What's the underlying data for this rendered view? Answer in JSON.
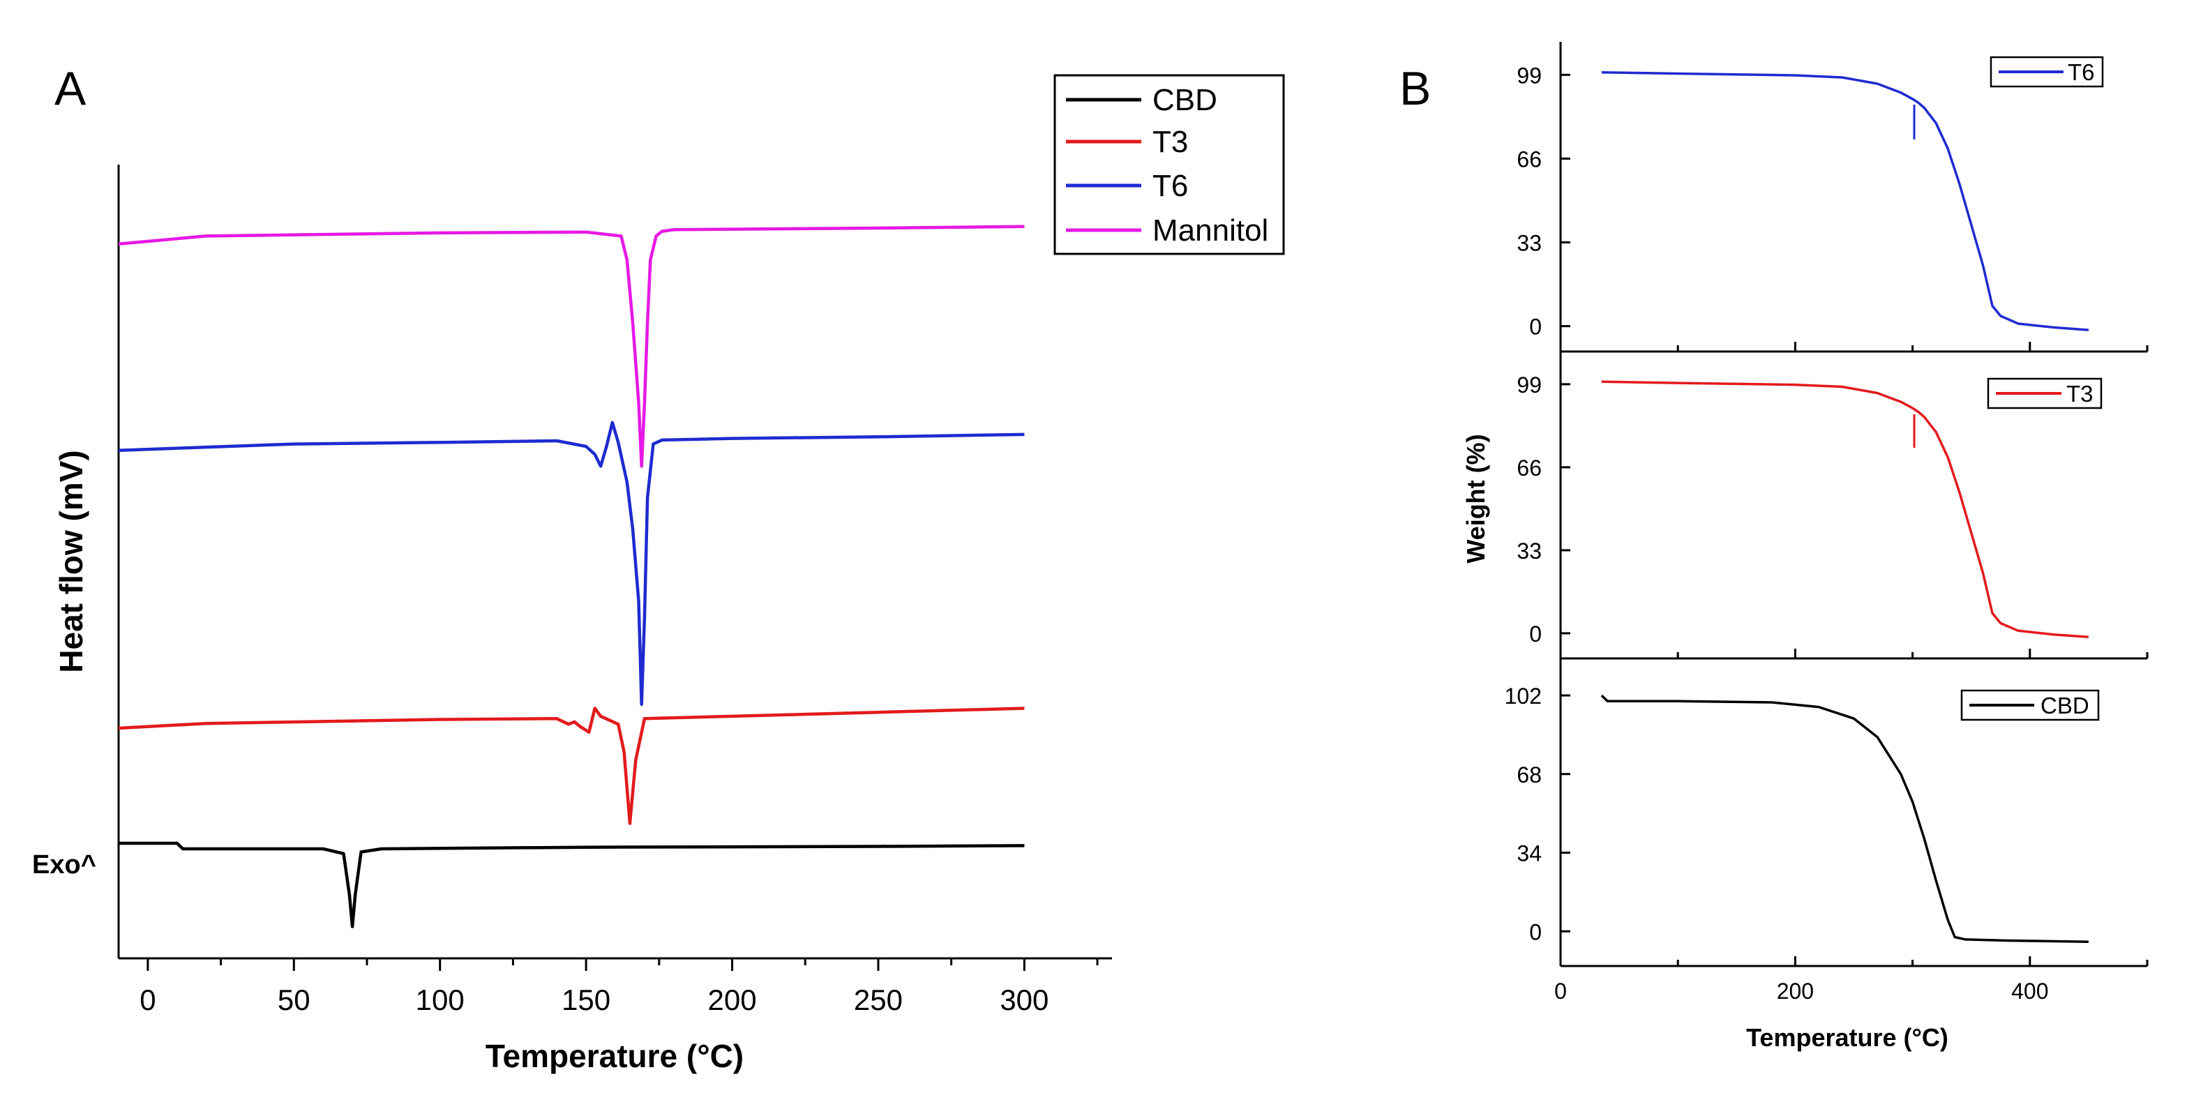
{
  "figure": {
    "panel_a_label": "A",
    "panel_b_label": "B"
  },
  "chart_data": [
    {
      "type": "line",
      "panel": "A",
      "title": "",
      "xlabel": "Temperature (°C)",
      "ylabel": "Heat flow (mV)",
      "y_annotation": "Exo^",
      "xlim": [
        -10,
        330
      ],
      "ylim": [
        0,
        100
      ],
      "xticks": [
        0,
        50,
        100,
        150,
        200,
        250,
        300
      ],
      "y_axis_numeric": false,
      "legend": "top-right",
      "series": [
        {
          "name": "CBD",
          "color": "#000000",
          "x": [
            -10,
            10,
            12,
            20,
            60,
            67,
            69,
            70,
            71,
            73,
            80,
            150,
            250,
            300
          ],
          "y": [
            14.5,
            14.5,
            13.8,
            13.8,
            13.8,
            13.2,
            8,
            4,
            8,
            13.4,
            13.8,
            14,
            14.1,
            14.2
          ]
        },
        {
          "name": "T3",
          "color": "#e31a1c",
          "x": [
            -10,
            20,
            100,
            140,
            144,
            146,
            148,
            151,
            153,
            155,
            158,
            161,
            163,
            165,
            167,
            170,
            200,
            250,
            300
          ],
          "y": [
            29,
            29.6,
            30.1,
            30.2,
            29.5,
            29.8,
            29.2,
            28.5,
            31.5,
            30.5,
            30,
            29.5,
            26,
            17,
            25,
            30.2,
            30.5,
            31,
            31.5
          ]
        },
        {
          "name": "T6",
          "color": "#1f2bd0",
          "x": [
            -10,
            50,
            100,
            140,
            150,
            153,
            155,
            157,
            159,
            161,
            164,
            166,
            168,
            169,
            170,
            171,
            173,
            176,
            200,
            250,
            300
          ],
          "y": [
            64,
            64.8,
            65,
            65.2,
            64.5,
            63.5,
            62,
            64.5,
            67.5,
            65,
            60,
            54,
            45,
            32,
            43,
            58,
            64.8,
            65.3,
            65.5,
            65.7,
            66
          ]
        },
        {
          "name": "Mannitol",
          "color": "#e619e6",
          "x": [
            -10,
            20,
            100,
            150,
            162,
            164,
            166,
            168,
            169,
            170,
            171,
            172,
            174,
            176,
            180,
            250,
            300
          ],
          "y": [
            90,
            91,
            91.4,
            91.5,
            91,
            88,
            80,
            70,
            62,
            70,
            80,
            88,
            91,
            91.6,
            91.8,
            92,
            92.2
          ]
        }
      ]
    },
    {
      "type": "line",
      "panel": "B-top",
      "title": "",
      "xlabel": "",
      "ylabel": "",
      "xlim": [
        0,
        500
      ],
      "ylim": [
        -10,
        112
      ],
      "yticks": [
        0,
        33,
        66,
        99
      ],
      "legend": "top-right",
      "series": [
        {
          "name": "T6",
          "color": "#1f2bd0",
          "x": [
            35,
            100,
            200,
            240,
            270,
            290,
            300,
            305,
            310,
            320,
            330,
            340,
            350,
            360,
            368,
            375,
            390,
            420,
            450
          ],
          "y": [
            100,
            99.5,
            98.8,
            98,
            95.5,
            92,
            89.5,
            88,
            86,
            80,
            70,
            56,
            40,
            24,
            8,
            4,
            1,
            -0.5,
            -1.5
          ]
        }
      ]
    },
    {
      "type": "line",
      "panel": "B-middle",
      "title": "",
      "xlabel": "",
      "ylabel": "Weight (%)",
      "xlim": [
        0,
        500
      ],
      "ylim": [
        -10,
        112
      ],
      "yticks": [
        0,
        33,
        66,
        99
      ],
      "legend": "top-right",
      "series": [
        {
          "name": "T3",
          "color": "#e31a1c",
          "x": [
            35,
            100,
            200,
            240,
            270,
            290,
            300,
            305,
            310,
            320,
            330,
            340,
            350,
            360,
            368,
            375,
            390,
            420,
            450
          ],
          "y": [
            100,
            99.5,
            98.8,
            98,
            95.5,
            92,
            89.5,
            88,
            86,
            80,
            70,
            56,
            40,
            24,
            8,
            4,
            1,
            -0.5,
            -1.5
          ]
        }
      ]
    },
    {
      "type": "line",
      "panel": "B-bottom",
      "title": "",
      "xlabel": "Temperature (°C)",
      "ylabel": "",
      "xlim": [
        0,
        500
      ],
      "ylim": [
        -15,
        118
      ],
      "yticks": [
        0,
        34,
        68,
        102
      ],
      "xticks": [
        0,
        200,
        400
      ],
      "legend": "top-right",
      "series": [
        {
          "name": "CBD",
          "color": "#000000",
          "x": [
            35,
            40,
            100,
            180,
            220,
            250,
            270,
            290,
            300,
            310,
            320,
            330,
            336,
            345,
            380,
            450
          ],
          "y": [
            102,
            99.5,
            99.5,
            99,
            97,
            92,
            84,
            68,
            56,
            40,
            22,
            5,
            -2.5,
            -3.5,
            -4,
            -4.5
          ]
        }
      ]
    }
  ]
}
